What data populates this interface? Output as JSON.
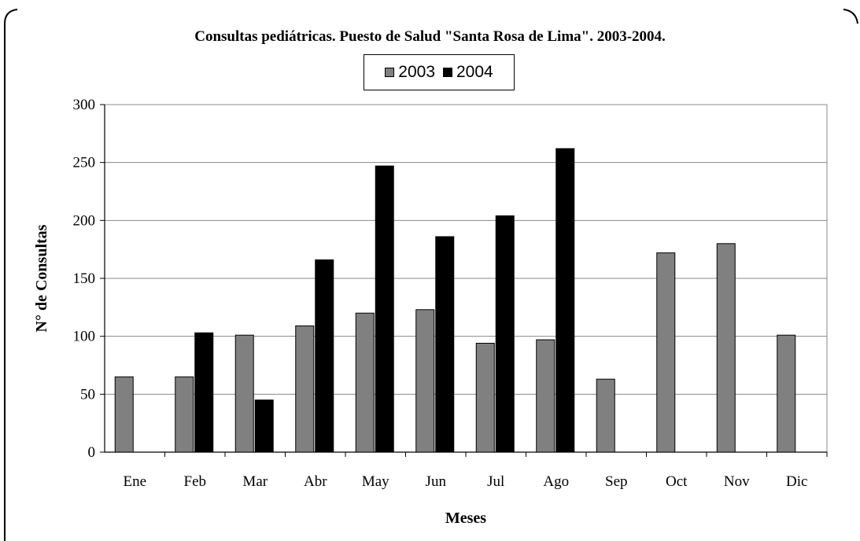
{
  "chart_data": {
    "type": "bar",
    "title": "Consultas pediátricas. Puesto de Salud \"Santa Rosa de Lima\". 2003-2004.",
    "xlabel": "Meses",
    "ylabel": "N° de Consultas",
    "ylim": [
      0,
      300
    ],
    "yticks": [
      "0",
      "50",
      "100",
      "150",
      "200",
      "250",
      "300"
    ],
    "ytick_values": [
      0,
      50,
      100,
      150,
      200,
      250,
      300
    ],
    "grid": true,
    "legend_placement": "top-center",
    "categories": [
      "Ene",
      "Feb",
      "Mar",
      "Abr",
      "May",
      "Jun",
      "Jul",
      "Ago",
      "Sep",
      "Oct",
      "Nov",
      "Dic"
    ],
    "series": [
      {
        "name": "2003",
        "color": "#808080",
        "values": [
          65,
          65,
          101,
          109,
          120,
          123,
          94,
          97,
          63,
          172,
          180,
          101
        ]
      },
      {
        "name": "2004",
        "color": "#000000",
        "values": [
          null,
          103,
          45,
          166,
          247,
          186,
          204,
          262,
          null,
          null,
          null,
          null
        ]
      }
    ]
  }
}
